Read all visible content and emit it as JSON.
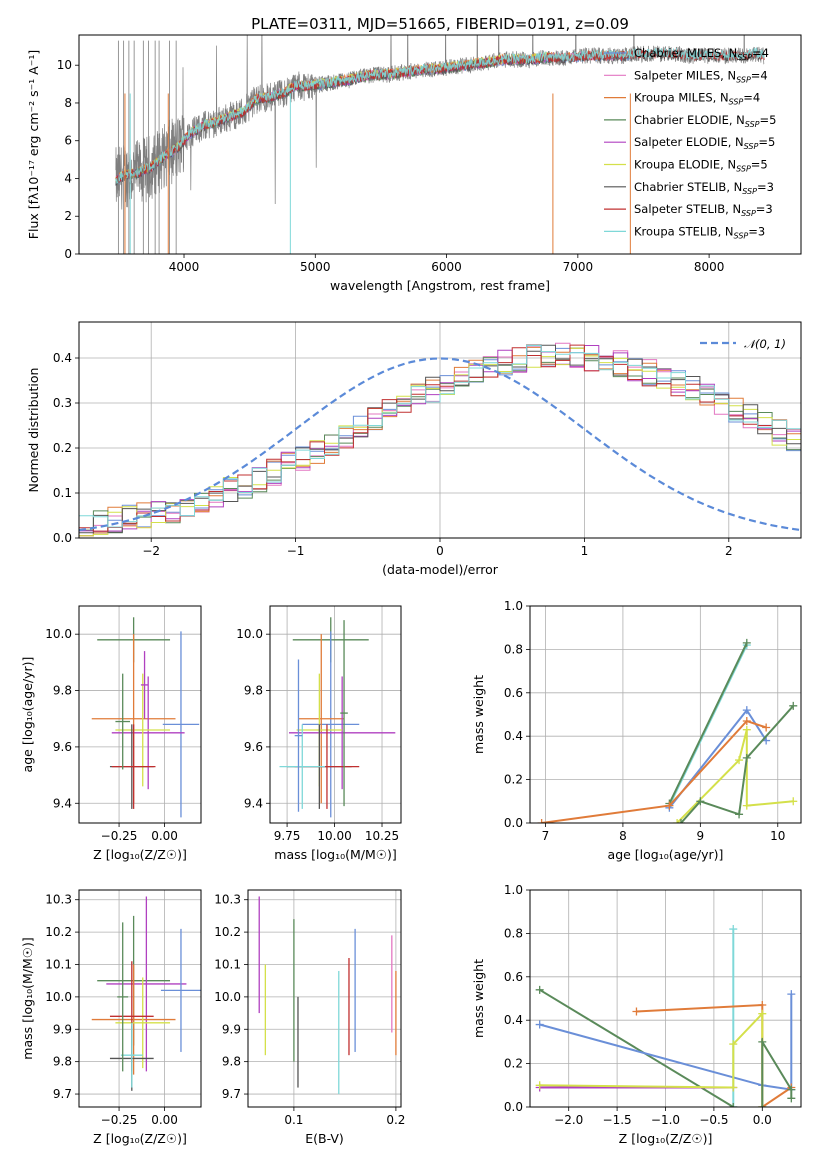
{
  "chart_data": [
    {
      "id": "spectrum",
      "type": "line",
      "title": "PLATE=0311, MJD=51665, FIBERID=0191, z=0.09",
      "xlabel": "wavelength [Angstrom, rest frame]",
      "ylabel": "Flux [fλ10⁻¹⁷ erg cm⁻² s⁻¹ A⁻¹]",
      "xlim": [
        3200,
        8700
      ],
      "ylim": [
        0,
        11.6
      ],
      "xticks": [
        4000,
        5000,
        6000,
        7000,
        8000
      ],
      "yticks": [
        0,
        2,
        4,
        6,
        8,
        10
      ],
      "grid": false,
      "legend_position": "top-right",
      "data_curve": {
        "color": "#7f7f7f",
        "x": [
          3480,
          3550,
          3650,
          3750,
          3850,
          3950,
          4050,
          4150,
          4250,
          4350,
          4450,
          4550,
          4650,
          4750,
          4850,
          4950,
          5050,
          5150,
          5250,
          5350,
          5450,
          5550,
          5650,
          5750,
          5850,
          5950,
          6050,
          6150,
          6250,
          6350,
          6450,
          6550,
          6650,
          6750,
          6850,
          6950,
          7050,
          7150,
          7250,
          7350,
          7450,
          7550,
          7650,
          7750,
          7850,
          7950,
          8050,
          8150,
          8250,
          8350,
          8420
        ],
        "y": [
          3.9,
          4.2,
          4.3,
          4.6,
          5.2,
          5.6,
          6.4,
          6.8,
          7.0,
          7.3,
          7.5,
          8.2,
          8.3,
          8.5,
          8.9,
          8.9,
          9.0,
          9.1,
          9.2,
          9.4,
          9.5,
          9.5,
          9.6,
          9.7,
          9.8,
          9.8,
          9.9,
          10.0,
          10.1,
          10.2,
          10.3,
          10.3,
          10.3,
          10.4,
          10.4,
          10.4,
          10.5,
          10.5,
          10.5,
          10.5,
          10.6,
          10.6,
          10.6,
          10.6,
          10.5,
          10.5,
          10.5,
          10.5,
          10.5,
          10.6,
          10.5
        ]
      },
      "series": [
        {
          "name": "Chabrier MILES, N$_{SSP}$=4",
          "color": "#6a8fd8",
          "xmax": 7400
        },
        {
          "name": "Salpeter MILES, N$_{SSP}$=4",
          "color": "#e377c2",
          "xmax": 7400
        },
        {
          "name": "Kroupa MILES, N$_{SSP}$=4",
          "color": "#e07b39",
          "xmax": 7400
        },
        {
          "name": "Chabrier ELODIE, N$_{SSP}$=5",
          "color": "#5a8a5a",
          "xmax": 6800
        },
        {
          "name": "Salpeter ELODIE, N$_{SSP}$=5",
          "color": "#b040c0",
          "xmax": 6800
        },
        {
          "name": "Kroupa ELODIE, N$_{SSP}$=5",
          "color": "#d4e04a",
          "xmax": 6800
        },
        {
          "name": "Chabrier STELIB, N$_{SSP}$=3",
          "color": "#555555",
          "xmax": 8420
        },
        {
          "name": "Salpeter STELIB, N$_{SSP}$=3",
          "color": "#c03030",
          "xmax": 8420
        },
        {
          "name": "Kroupa STELIB, N$_{SSP}$=3",
          "color": "#7fd8d8",
          "xmax": 8420
        }
      ],
      "legend_labels": [
        "Chabrier MILES, N",
        "Salpeter MILES, N",
        "Kroupa MILES, N",
        "Chabrier ELODIE, N",
        "Salpeter ELODIE, N",
        "Kroupa ELODIE, N",
        "Chabrier STELIB, N",
        "Salpeter STELIB, N",
        "Kroupa STELIB, N"
      ],
      "legend_counts": [
        "=4",
        "=4",
        "=4",
        "=5",
        "=5",
        "=5",
        "=3",
        "=3",
        "=3"
      ],
      "legend_subscript": "SSP"
    },
    {
      "id": "residuals",
      "type": "line",
      "xlabel": "(data-model)/error",
      "ylabel": "Normed distribution",
      "xlim": [
        -2.5,
        2.5
      ],
      "ylim": [
        0,
        0.48
      ],
      "xticks": [
        -2,
        -1,
        0,
        1,
        2
      ],
      "yticks": [
        0.0,
        0.1,
        0.2,
        0.3,
        0.4
      ],
      "grid": true,
      "legend_position": "top-right",
      "legend": "𝒩(0, 1)",
      "normal_curve_color": "#5b8ad8",
      "bin_width": 0.1,
      "bin_start": -2.5,
      "hist_base": [
        0.025,
        0.033,
        0.04,
        0.044,
        0.048,
        0.055,
        0.063,
        0.072,
        0.082,
        0.093,
        0.105,
        0.118,
        0.132,
        0.146,
        0.161,
        0.178,
        0.194,
        0.211,
        0.228,
        0.246,
        0.263,
        0.281,
        0.298,
        0.315,
        0.33,
        0.345,
        0.358,
        0.37,
        0.38,
        0.39,
        0.396,
        0.401,
        0.404,
        0.405,
        0.404,
        0.4,
        0.394,
        0.387,
        0.378,
        0.368,
        0.356,
        0.344,
        0.33,
        0.316,
        0.301,
        0.285,
        0.268,
        0.251,
        0.234,
        0.217,
        0.2
      ],
      "hist_colors": [
        "#6a8fd8",
        "#e377c2",
        "#e07b39",
        "#5a8a5a",
        "#b040c0",
        "#d4e04a",
        "#555555",
        "#c03030",
        "#7fd8d8"
      ]
    },
    {
      "id": "age-vs-z",
      "type": "scatter",
      "xlabel": "Z [log₁₀(Z/Z☉)]",
      "ylabel": "age  [log₁₀(age/yr)]",
      "xlim": [
        -0.47,
        0.2
      ],
      "ylim": [
        9.33,
        10.1
      ],
      "xticks": [
        -0.25,
        0.0
      ],
      "yticks": [
        9.4,
        9.6,
        9.8,
        10.0
      ],
      "grid": true,
      "points": [
        {
          "x": -0.17,
          "y": 9.98,
          "xerr": 0.2,
          "yerr": 0.08,
          "color": "#5a8a5a"
        },
        {
          "x": 0.09,
          "y": 9.68,
          "xerr": 0.1,
          "yerr": 0.33,
          "color": "#6a8fd8"
        },
        {
          "x": -0.17,
          "y": 9.7,
          "xerr": 0.23,
          "yerr": 0.3,
          "color": "#e07b39"
        },
        {
          "x": -0.09,
          "y": 9.65,
          "xerr": 0.2,
          "yerr": 0.2,
          "color": "#b040c0"
        },
        {
          "x": -0.12,
          "y": 9.66,
          "xerr": 0.15,
          "yerr": 0.2,
          "color": "#d4e04a"
        },
        {
          "x": -0.18,
          "y": 9.53,
          "xerr": 0.12,
          "yerr": 0.15,
          "color": "#555555"
        },
        {
          "x": -0.17,
          "y": 9.53,
          "xerr": 0.12,
          "yerr": 0.15,
          "color": "#c03030"
        },
        {
          "x": -0.23,
          "y": 9.69,
          "xerr": 0.04,
          "yerr": 0.17,
          "color": "#5a8a5a"
        },
        {
          "x": -0.11,
          "y": 9.82,
          "xerr": 0.02,
          "yerr": 0.12,
          "color": "#b040c0"
        }
      ]
    },
    {
      "id": "age-vs-mass",
      "type": "scatter",
      "xlabel": "mass [log₁₀(M/M☉)]",
      "ylabel": "",
      "xlim": [
        9.66,
        10.35
      ],
      "ylim": [
        9.33,
        10.1
      ],
      "xticks": [
        9.75,
        10.0,
        10.25
      ],
      "yticks": [
        9.4,
        9.6,
        9.8,
        10.0
      ],
      "grid": true,
      "points": [
        {
          "x": 9.98,
          "y": 9.98,
          "xerr": 0.2,
          "yerr": 0.08,
          "color": "#5a8a5a"
        },
        {
          "x": 9.98,
          "y": 9.68,
          "xerr": 0.15,
          "yerr": 0.33,
          "color": "#6a8fd8"
        },
        {
          "x": 9.93,
          "y": 9.7,
          "xerr": 0.12,
          "yerr": 0.3,
          "color": "#e07b39"
        },
        {
          "x": 10.04,
          "y": 9.65,
          "xerr": 0.28,
          "yerr": 0.2,
          "color": "#b040c0"
        },
        {
          "x": 9.92,
          "y": 9.66,
          "xerr": 0.12,
          "yerr": 0.2,
          "color": "#d4e04a"
        },
        {
          "x": 9.92,
          "y": 9.53,
          "xerr": 0.17,
          "yerr": 0.15,
          "color": "#555555"
        },
        {
          "x": 9.96,
          "y": 9.53,
          "xerr": 0.17,
          "yerr": 0.15,
          "color": "#c03030"
        },
        {
          "x": 9.83,
          "y": 9.53,
          "xerr": 0.12,
          "yerr": 0.15,
          "color": "#7fd8d8"
        },
        {
          "x": 10.05,
          "y": 9.72,
          "xerr": 0.02,
          "yerr": 0.33,
          "color": "#5a8a5a"
        },
        {
          "x": 9.81,
          "y": 9.64,
          "xerr": 0.02,
          "yerr": 0.27,
          "color": "#6a8fd8"
        }
      ]
    },
    {
      "id": "weight-vs-age",
      "type": "line",
      "xlabel": "age  [log₁₀(age/yr)]",
      "ylabel": "mass weight",
      "xlim": [
        6.8,
        10.3
      ],
      "ylim": [
        0,
        1.0
      ],
      "xticks": [
        7,
        8,
        9,
        10
      ],
      "yticks": [
        0.0,
        0.2,
        0.4,
        0.6,
        0.8,
        1.0
      ],
      "grid": true,
      "series": [
        {
          "color": "#7fd8d8",
          "x": [
            8.6,
            9.6
          ],
          "y": [
            0.08,
            0.82
          ]
        },
        {
          "color": "#5a8a5a",
          "x": [
            8.6,
            9.6
          ],
          "y": [
            0.09,
            0.83
          ]
        },
        {
          "color": "#6a8fd8",
          "x": [
            8.6,
            9.6,
            9.85
          ],
          "y": [
            0.07,
            0.52,
            0.38
          ]
        },
        {
          "color": "#e07b39",
          "x": [
            6.95,
            8.6,
            9.6,
            9.85
          ],
          "y": [
            0.0,
            0.08,
            0.47,
            0.44
          ]
        },
        {
          "color": "#d4e04a",
          "x": [
            8.7,
            9.5,
            9.6,
            9.6,
            10.2
          ],
          "y": [
            0.0,
            0.29,
            0.43,
            0.08,
            0.1
          ]
        },
        {
          "color": "#5a8a5a",
          "x": [
            8.75,
            9.0,
            9.5,
            9.6,
            10.2
          ],
          "y": [
            0.0,
            0.1,
            0.04,
            0.3,
            0.54
          ]
        }
      ]
    },
    {
      "id": "mass-vs-z",
      "type": "scatter",
      "xlabel": "Z [log₁₀(Z/Z☉)]",
      "ylabel": "mass [log₁₀(M/M☉)]",
      "xlim": [
        -0.47,
        0.2
      ],
      "ylim": [
        9.66,
        10.33
      ],
      "xticks": [
        -0.25,
        0.0
      ],
      "yticks": [
        9.7,
        9.8,
        9.9,
        10.0,
        10.1,
        10.2,
        10.3
      ],
      "grid": true,
      "points": [
        {
          "x": -0.17,
          "y": 10.05,
          "xerr": 0.2,
          "yerr": 0.2,
          "color": "#5a8a5a"
        },
        {
          "x": -0.1,
          "y": 10.04,
          "xerr": 0.22,
          "yerr": 0.27,
          "color": "#b040c0"
        },
        {
          "x": 0.09,
          "y": 10.02,
          "xerr": 0.11,
          "yerr": 0.19,
          "color": "#6a8fd8"
        },
        {
          "x": -0.17,
          "y": 9.93,
          "xerr": 0.23,
          "yerr": 0.17,
          "color": "#e07b39"
        },
        {
          "x": -0.12,
          "y": 9.92,
          "xerr": 0.15,
          "yerr": 0.14,
          "color": "#d4e04a"
        },
        {
          "x": -0.18,
          "y": 9.94,
          "xerr": 0.12,
          "yerr": 0.17,
          "color": "#c03030"
        },
        {
          "x": -0.18,
          "y": 9.81,
          "xerr": 0.12,
          "yerr": 0.1,
          "color": "#555555"
        },
        {
          "x": -0.18,
          "y": 9.82,
          "xerr": 0.06,
          "yerr": 0.1,
          "color": "#7fd8d8"
        },
        {
          "x": -0.23,
          "y": 10.0,
          "xerr": 0.03,
          "yerr": 0.23,
          "color": "#5a8a5a"
        }
      ]
    },
    {
      "id": "mass-vs-ebv",
      "type": "scatter",
      "xlabel": "E(B-V)",
      "ylabel": "",
      "xlim": [
        0.055,
        0.205
      ],
      "ylim": [
        9.66,
        10.33
      ],
      "xticks": [
        0.1,
        0.2
      ],
      "yticks": [
        9.7,
        9.8,
        9.9,
        10.0,
        10.1,
        10.2,
        10.3
      ],
      "grid": true,
      "points": [
        {
          "x": 0.066,
          "y": 10.13,
          "xerr": 0,
          "yerr": 0.18,
          "color": "#b040c0"
        },
        {
          "x": 0.072,
          "y": 9.96,
          "xerr": 0,
          "yerr": 0.14,
          "color": "#d4e04a"
        },
        {
          "x": 0.1,
          "y": 10.02,
          "xerr": 0,
          "yerr": 0.22,
          "color": "#5a8a5a"
        },
        {
          "x": 0.104,
          "y": 9.86,
          "xerr": 0,
          "yerr": 0.14,
          "color": "#555555"
        },
        {
          "x": 0.144,
          "y": 9.89,
          "xerr": 0,
          "yerr": 0.19,
          "color": "#7fd8d8"
        },
        {
          "x": 0.154,
          "y": 9.97,
          "xerr": 0,
          "yerr": 0.15,
          "color": "#c03030"
        },
        {
          "x": 0.16,
          "y": 10.02,
          "xerr": 0,
          "yerr": 0.19,
          "color": "#6a8fd8"
        },
        {
          "x": 0.196,
          "y": 10.04,
          "xerr": 0,
          "yerr": 0.15,
          "color": "#e377c2"
        },
        {
          "x": 0.2,
          "y": 9.95,
          "xerr": 0,
          "yerr": 0.13,
          "color": "#e07b39"
        }
      ]
    },
    {
      "id": "weight-vs-z",
      "type": "line",
      "xlabel": "Z [log₁₀(Z/Z☉)]",
      "ylabel": "mass weight",
      "xlim": [
        -2.4,
        0.4
      ],
      "ylim": [
        0,
        1.0
      ],
      "xticks": [
        -2.0,
        -1.5,
        -1.0,
        -0.5,
        0.0
      ],
      "yticks": [
        0.0,
        0.2,
        0.4,
        0.6,
        0.8,
        1.0
      ],
      "grid": true,
      "series": [
        {
          "color": "#7fd8d8",
          "x": [
            -0.3,
            -0.3
          ],
          "y": [
            0.82,
            0.0
          ]
        },
        {
          "color": "#5a8a5a",
          "x": [
            -2.3,
            -0.3
          ],
          "y": [
            0.54,
            0.0
          ]
        },
        {
          "color": "#6a8fd8",
          "x": [
            -2.3,
            0.0,
            0.3,
            0.3
          ],
          "y": [
            0.38,
            0.1,
            0.08,
            0.52
          ]
        },
        {
          "color": "#e07b39",
          "x": [
            -1.3,
            0.0,
            0.0,
            0.3
          ],
          "y": [
            0.44,
            0.47,
            0.0,
            0.09
          ]
        },
        {
          "color": "#b040c0",
          "x": [
            -2.3,
            -0.3
          ],
          "y": [
            0.09,
            0.09
          ]
        },
        {
          "color": "#d4e04a",
          "x": [
            -2.3,
            -0.3,
            -0.3,
            0.0,
            0.0
          ],
          "y": [
            0.1,
            0.09,
            0.29,
            0.43,
            0.0
          ]
        },
        {
          "color": "#5a8a5a",
          "x": [
            0.0,
            0.0,
            0.3,
            0.3
          ],
          "y": [
            0.0,
            0.3,
            0.08,
            0.04
          ]
        }
      ]
    }
  ]
}
